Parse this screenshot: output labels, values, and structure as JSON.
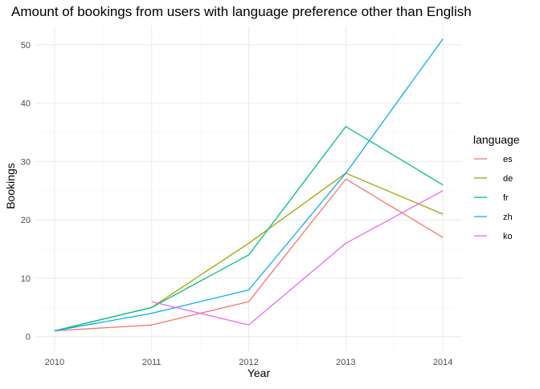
{
  "chart_data": {
    "type": "line",
    "title": "Amount of bookings from users with language preference other than English",
    "xlabel": "Year",
    "ylabel": "Bookings",
    "x": [
      2010,
      2011,
      2012,
      2013,
      2014
    ],
    "xlim": [
      2010,
      2014
    ],
    "ylim": [
      0,
      53
    ],
    "y_ticks": [
      0,
      10,
      20,
      30,
      40,
      50
    ],
    "grid": true,
    "legend_title": "language",
    "legend_position": "right",
    "series": [
      {
        "name": "es",
        "color": "#F8766D",
        "x": [
          2010,
          2011,
          2012,
          2013,
          2014
        ],
        "values": [
          1,
          2,
          6,
          27,
          17
        ]
      },
      {
        "name": "de",
        "color": "#A3A500",
        "x": [
          2010,
          2011,
          2012,
          2013,
          2014
        ],
        "values": [
          1,
          5,
          16,
          28,
          21
        ]
      },
      {
        "name": "fr",
        "color": "#00BF7D",
        "x": [
          2010,
          2011,
          2012,
          2013,
          2014
        ],
        "values": [
          1,
          5,
          14,
          36,
          26
        ]
      },
      {
        "name": "zh",
        "color": "#00B0F6",
        "x": [
          2010,
          2011,
          2012,
          2013,
          2014
        ],
        "values": [
          1,
          4,
          8,
          28,
          51
        ]
      },
      {
        "name": "ko",
        "color": "#E76BF3",
        "x": [
          2011,
          2012,
          2013,
          2014
        ],
        "values": [
          6,
          2,
          16,
          25
        ]
      }
    ]
  }
}
